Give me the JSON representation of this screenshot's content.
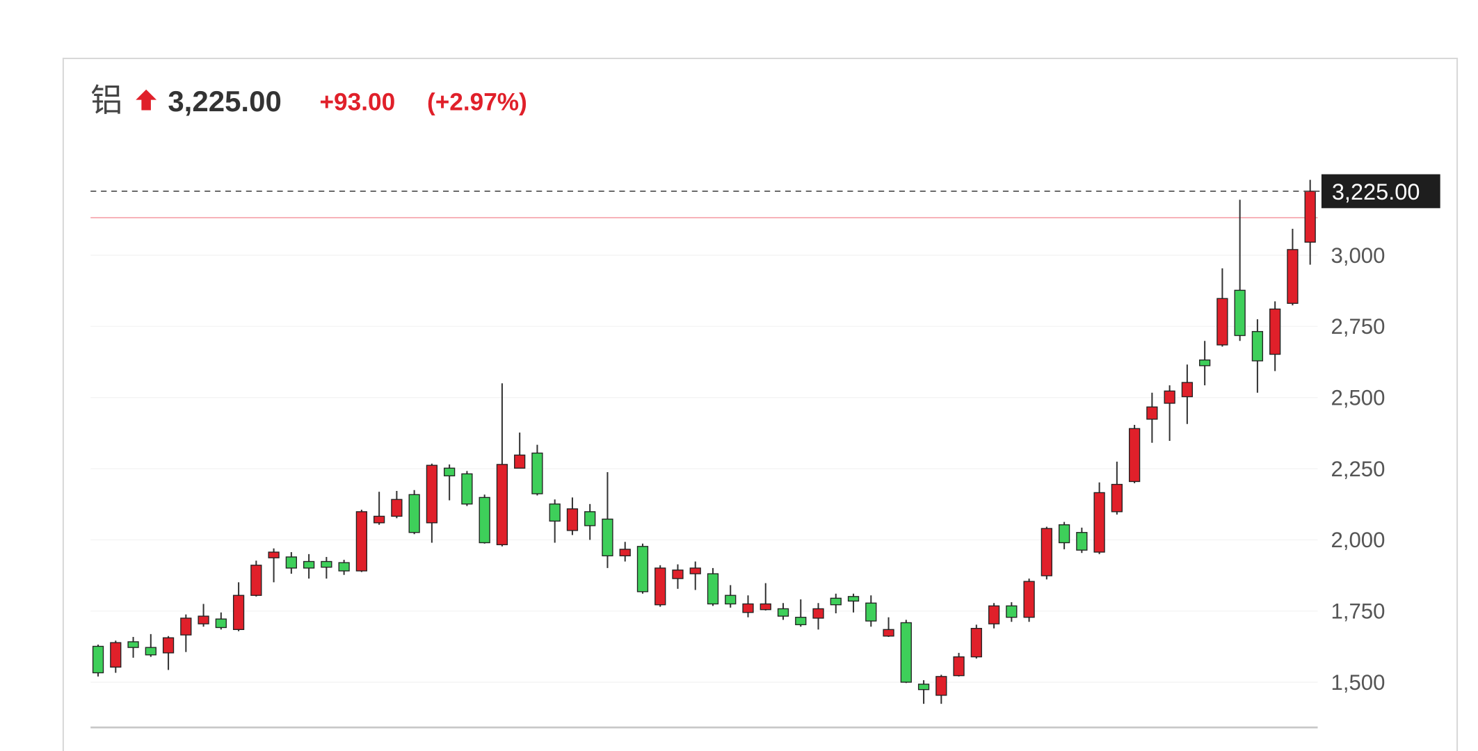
{
  "chart_data": {
    "type": "candlestick",
    "title": "铝",
    "price": {
      "value": 3225,
      "label": "3,225.00"
    },
    "change": {
      "value": 93,
      "label": "+93.00"
    },
    "change_pct": {
      "value": 2.97,
      "label": "(+2.97%)"
    },
    "up_color": "#e0202a",
    "down_color": "#3ecf5a",
    "change_color": "#e0202a",
    "prev_close": 3132,
    "open": [
      1626,
      1553,
      1642,
      1622,
      1603,
      1666,
      1705,
      1722,
      1685,
      1805,
      1937,
      1940,
      1924,
      1924,
      1920,
      1891,
      2060,
      2083,
      2159,
      2060,
      2252,
      2232,
      2149,
      1983,
      2252,
      2305,
      2126,
      2033,
      2099,
      2073,
      1944,
      1977,
      1772,
      1864,
      1881,
      1881,
      1805,
      1745,
      1755,
      1758,
      1728,
      1725,
      1795,
      1801,
      1778,
      1662,
      1709,
      1493,
      1454,
      1523,
      1589,
      1705,
      1768,
      1728,
      1874,
      2053,
      2026,
      1957,
      2099,
      2205,
      2424,
      2480,
      2503,
      2632,
      2685,
      2877,
      2732,
      2652,
      2831,
      3046
    ],
    "high": [
      1632,
      1646,
      1659,
      1669,
      1662,
      1738,
      1775,
      1745,
      1851,
      1927,
      1970,
      1957,
      1950,
      1940,
      1930,
      2106,
      2169,
      2172,
      2175,
      2268,
      2265,
      2242,
      2159,
      2550,
      2377,
      2334,
      2142,
      2149,
      2126,
      2238,
      1993,
      1987,
      1911,
      1914,
      1924,
      1901,
      1841,
      1805,
      1848,
      1778,
      1791,
      1778,
      1811,
      1811,
      1805,
      1728,
      1719,
      1507,
      1526,
      1603,
      1702,
      1778,
      1781,
      1864,
      2046,
      2063,
      2043,
      2202,
      2275,
      2404,
      2517,
      2543,
      2616,
      2699,
      2954,
      3195,
      2775,
      2838,
      3093,
      3265
    ],
    "low": [
      1520,
      1533,
      1586,
      1589,
      1543,
      1606,
      1695,
      1685,
      1679,
      1801,
      1851,
      1881,
      1864,
      1864,
      1877,
      1887,
      2053,
      2076,
      2020,
      1990,
      2139,
      2119,
      1987,
      1977,
      2252,
      2156,
      1990,
      2017,
      2000,
      1901,
      1924,
      1811,
      1765,
      1828,
      1824,
      1768,
      1762,
      1728,
      1752,
      1719,
      1695,
      1685,
      1742,
      1745,
      1695,
      1659,
      1497,
      1424,
      1424,
      1520,
      1583,
      1689,
      1712,
      1712,
      1861,
      1967,
      1954,
      1950,
      2089,
      2199,
      2341,
      2348,
      2407,
      2543,
      2679,
      2699,
      2517,
      2593,
      2824,
      2967
    ],
    "close": [
      1533,
      1639,
      1622,
      1596,
      1656,
      1725,
      1732,
      1692,
      1805,
      1911,
      1957,
      1901,
      1901,
      1904,
      1891,
      2099,
      2083,
      2142,
      2026,
      2262,
      2225,
      2126,
      1990,
      2265,
      2298,
      2162,
      2066,
      2109,
      2050,
      1944,
      1967,
      1818,
      1901,
      1894,
      1901,
      1775,
      1775,
      1775,
      1775,
      1732,
      1702,
      1758,
      1772,
      1785,
      1715,
      1685,
      1500,
      1474,
      1520,
      1589,
      1689,
      1768,
      1728,
      1854,
      2040,
      1990,
      1964,
      2166,
      2195,
      2391,
      2467,
      2523,
      2553,
      2612,
      2848,
      2718,
      2629,
      2811,
      3020,
      3225
    ],
    "ylim": [
      1341,
      3334
    ],
    "yticks": [
      {
        "value": 1500,
        "label": "1,500"
      },
      {
        "value": 1750,
        "label": "1,750"
      },
      {
        "value": 2000,
        "label": "2,000"
      },
      {
        "value": 2250,
        "label": "2,250"
      },
      {
        "value": 2500,
        "label": "2,500"
      },
      {
        "value": 2750,
        "label": "2,750"
      },
      {
        "value": 3000,
        "label": "3,000"
      }
    ]
  }
}
